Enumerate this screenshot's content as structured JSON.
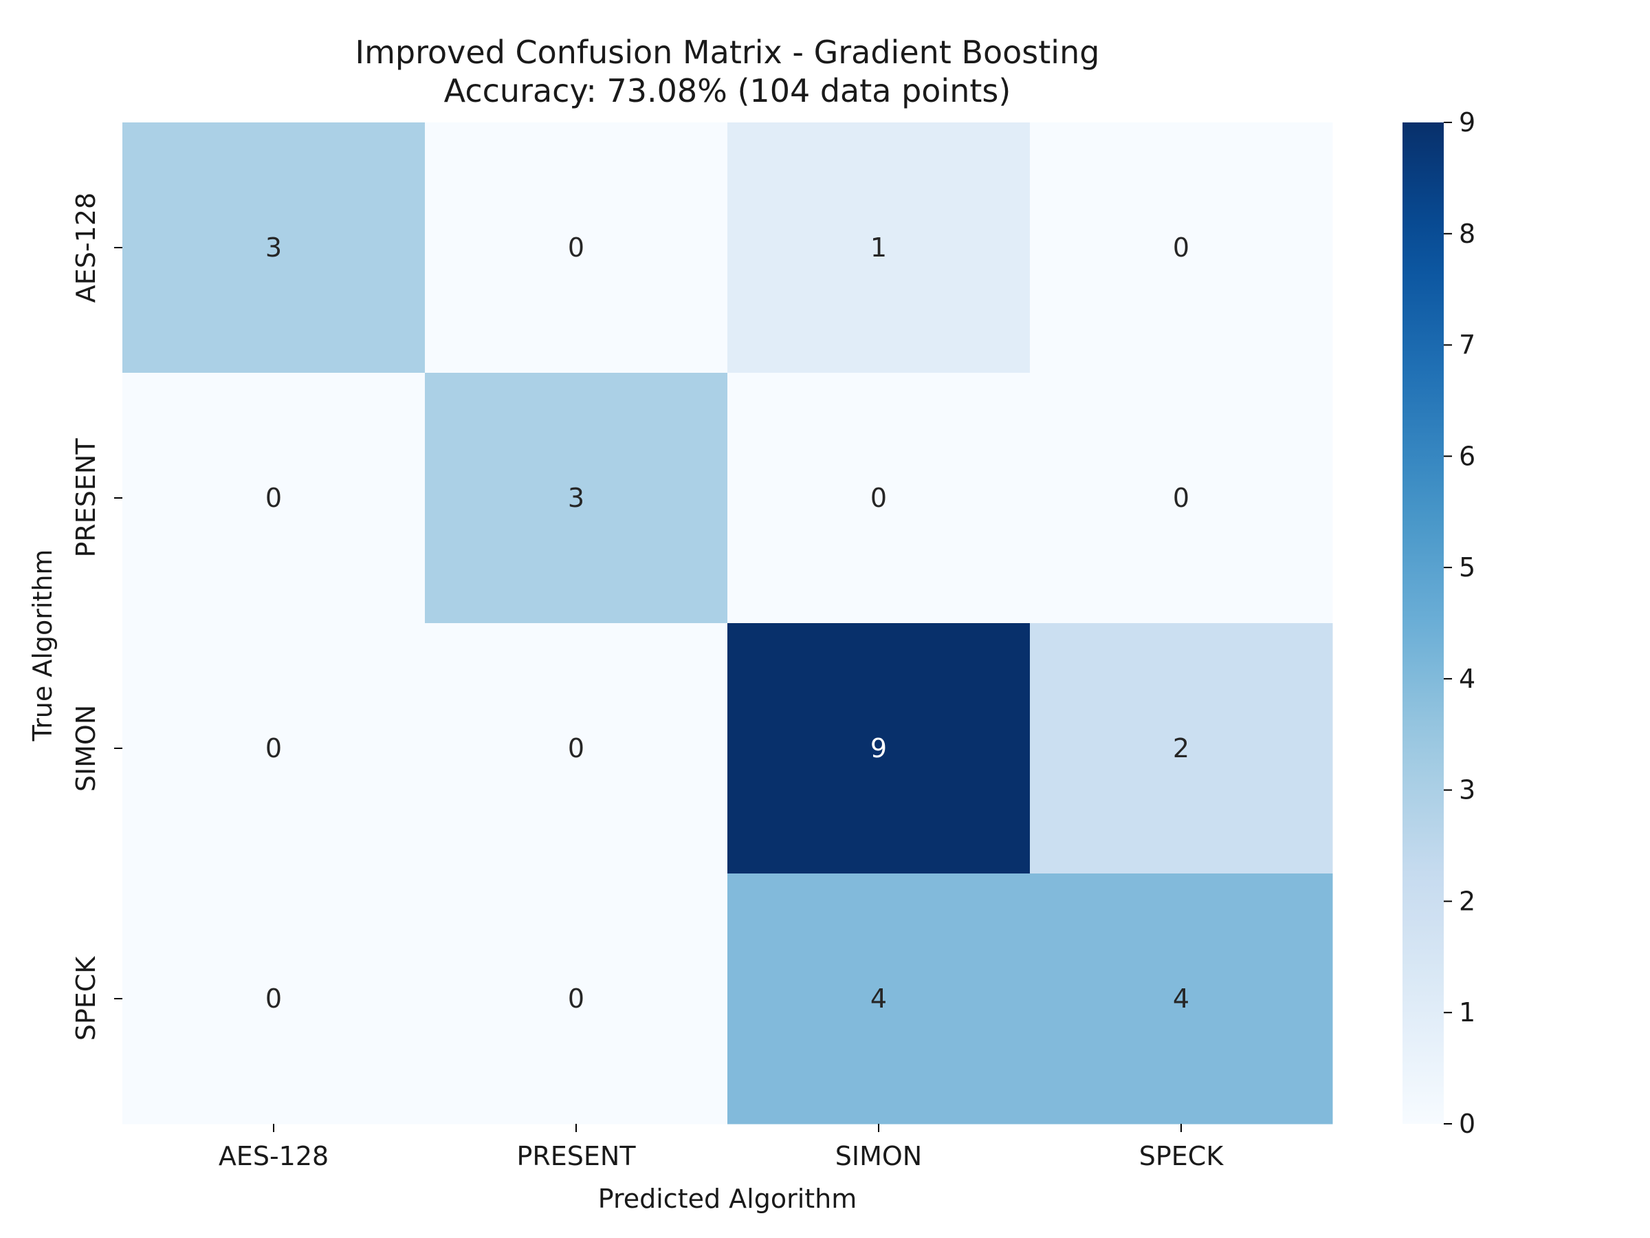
{
  "chart_data": {
    "type": "heatmap",
    "title": "Improved Confusion Matrix - Gradient Boosting",
    "subtitle": "Accuracy: 73.08% (104 data points)",
    "xlabel": "Predicted Algorithm",
    "ylabel": "True Algorithm",
    "x_categories": [
      "AES-128",
      "PRESENT",
      "SIMON",
      "SPECK"
    ],
    "y_categories": [
      "AES-128",
      "PRESENT",
      "SIMON",
      "SPECK"
    ],
    "values": [
      [
        3,
        0,
        1,
        0
      ],
      [
        0,
        3,
        0,
        0
      ],
      [
        0,
        0,
        9,
        2
      ],
      [
        0,
        0,
        4,
        4
      ]
    ],
    "colorbar": {
      "range": [
        0,
        9
      ],
      "ticks": [
        "0",
        "1",
        "2",
        "3",
        "4",
        "5",
        "6",
        "7",
        "8",
        "9"
      ]
    },
    "colormap": "Blues",
    "colors": {
      "low": "#f7fbff",
      "high": "#08306b",
      "text_dark": "#262626",
      "text_light": "#ffffff"
    },
    "grid": false
  }
}
